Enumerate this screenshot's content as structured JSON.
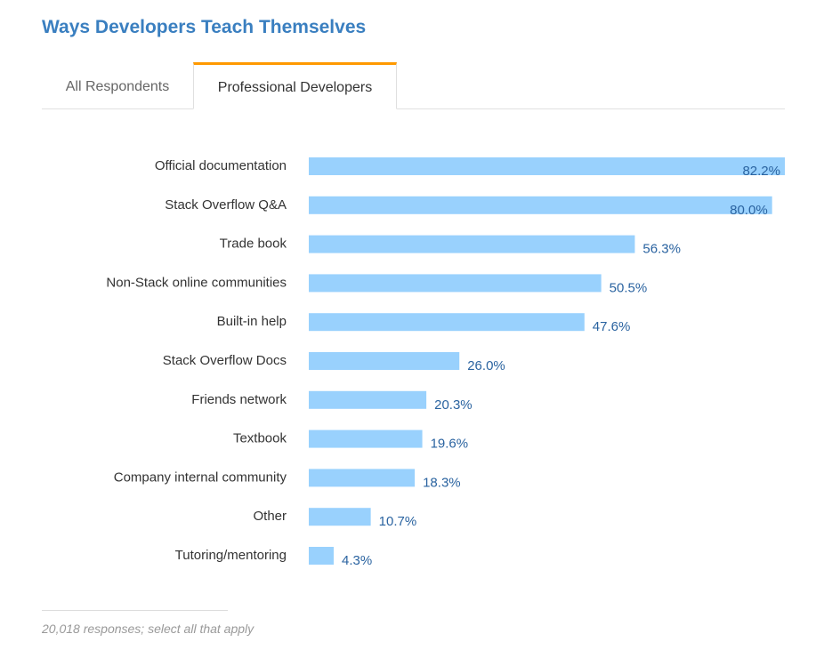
{
  "title": "Ways Developers Teach Themselves",
  "tabs": [
    {
      "label": "All Respondents",
      "active": false
    },
    {
      "label": "Professional Developers",
      "active": true
    }
  ],
  "footnote": "20,018 responses; select all that apply",
  "colors": {
    "bar": "#99d1fd",
    "value_text": "#2a63a0",
    "title": "#3a7fc0",
    "active_tab": "#ff9900"
  },
  "chart_data": {
    "type": "bar",
    "orientation": "horizontal",
    "categories": [
      "Official documentation",
      "Stack Overflow Q&A",
      "Trade book",
      "Non-Stack online communities",
      "Built-in help",
      "Stack Overflow Docs",
      "Friends network",
      "Textbook",
      "Company internal community",
      "Other",
      "Tutoring/mentoring"
    ],
    "values": [
      82.2,
      80.0,
      56.3,
      50.5,
      47.6,
      26.0,
      20.3,
      19.6,
      18.3,
      10.7,
      4.3
    ],
    "labels": [
      "82.2%",
      "80.0%",
      "56.3%",
      "50.5%",
      "47.6%",
      "26.0%",
      "20.3%",
      "19.6%",
      "18.3%",
      "10.7%",
      "4.3%"
    ],
    "unit": "%",
    "xlim": [
      0,
      82.2
    ],
    "grid": false
  }
}
